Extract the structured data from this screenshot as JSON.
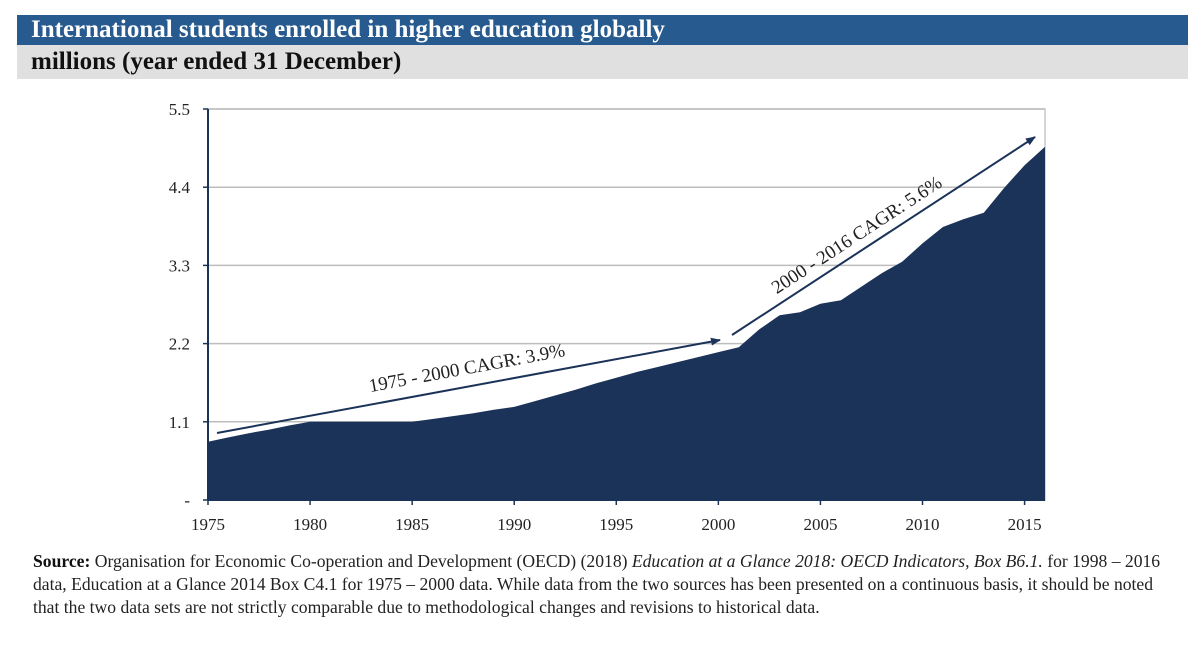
{
  "header": {
    "title": "International students enrolled in higher education globally",
    "subtitle": "millions (year ended 31 December)"
  },
  "chart_data": {
    "type": "area",
    "title": "International students enrolled in higher education globally",
    "ylabel": "millions (year ended 31 December)",
    "xlabel": "",
    "x": [
      1975,
      1976,
      1977,
      1978,
      1979,
      1980,
      1981,
      1982,
      1983,
      1984,
      1985,
      1986,
      1987,
      1988,
      1989,
      1990,
      1991,
      1992,
      1993,
      1994,
      1995,
      1996,
      1997,
      1998,
      1999,
      2000,
      2001,
      2002,
      2003,
      2004,
      2005,
      2006,
      2007,
      2008,
      2009,
      2010,
      2011,
      2012,
      2013,
      2014,
      2015,
      2016
    ],
    "values": [
      0.82,
      0.88,
      0.94,
      0.99,
      1.05,
      1.1,
      1.1,
      1.1,
      1.1,
      1.1,
      1.1,
      1.14,
      1.18,
      1.22,
      1.27,
      1.31,
      1.39,
      1.47,
      1.55,
      1.64,
      1.72,
      1.8,
      1.87,
      1.94,
      2.01,
      2.08,
      2.15,
      2.4,
      2.6,
      2.64,
      2.76,
      2.81,
      3.0,
      3.19,
      3.35,
      3.61,
      3.84,
      3.95,
      4.04,
      4.39,
      4.71,
      4.97
    ],
    "xlim": [
      1975,
      2016
    ],
    "ylim": [
      0,
      5.5
    ],
    "y_ticks": [
      "-",
      "1.1",
      "2.2",
      "3.3",
      "4.4",
      "5.5"
    ],
    "x_ticks": [
      "1975",
      "1980",
      "1985",
      "1990",
      "1995",
      "2000",
      "2005",
      "2010",
      "2015"
    ],
    "grid": "horizontal",
    "fill_color": "#1b3358",
    "annotations": [
      {
        "text": "1975 - 2000 CAGR: 3.9%",
        "from_year": 1975,
        "to_year": 2000
      },
      {
        "text": "2000 - 2016 CAGR: 5.6%",
        "from_year": 2000,
        "to_year": 2016
      }
    ]
  },
  "source": {
    "label": "Source:",
    "text1": " Organisation for Economic Co-operation and Development (OECD) (2018) ",
    "italic": "Education at a Glance 2018: OECD Indicators, Box B6.1.",
    "text2": "  for 1998 – 2016 data, Education at a Glance 2014 Box C4.1 for 1975 – 2000 data.  While data from the two sources has been presented on a continuous basis, it should be noted that the two data sets are not strictly comparable due to methodological changes and revisions to historical data."
  }
}
